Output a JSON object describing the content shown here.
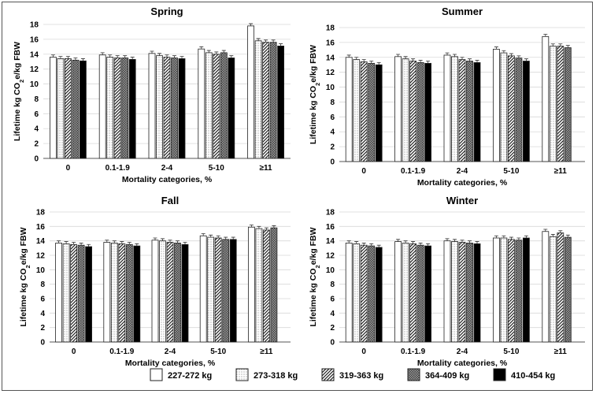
{
  "chart_data": [
    {
      "type": "bar",
      "title": "Spring",
      "xlabel": "Mortality categories, %",
      "ylabel": "Lifetime kg CO2e/kg FBW",
      "ylim": [
        0,
        18
      ],
      "yticks": [
        "0",
        "2",
        "4",
        "6",
        "8",
        "10",
        "12",
        "14",
        "16",
        "18"
      ],
      "categories": [
        "0",
        "0.1-1.9",
        "2-4",
        "5-10",
        "≥11"
      ],
      "series": [
        {
          "name": "227-272 kg",
          "values": [
            13.6,
            13.9,
            14.1,
            14.7,
            17.8
          ]
        },
        {
          "name": "273-318 kg",
          "values": [
            13.4,
            13.6,
            13.8,
            14.2,
            15.8
          ]
        },
        {
          "name": "319-363 kg",
          "values": [
            13.4,
            13.5,
            13.6,
            14.0,
            15.6
          ]
        },
        {
          "name": "364-409 kg",
          "values": [
            13.2,
            13.5,
            13.5,
            14.2,
            15.6
          ]
        },
        {
          "name": "410-454 kg",
          "values": [
            13.1,
            13.3,
            13.4,
            13.5,
            15.1
          ]
        }
      ]
    },
    {
      "type": "bar",
      "title": "Summer",
      "xlabel": "Mortality categories, %",
      "ylabel": "Lifetime kg CO2e/kg FBW",
      "ylim": [
        0,
        18
      ],
      "yticks": [
        "0",
        "2",
        "4",
        "6",
        "8",
        "10",
        "12",
        "14",
        "16",
        "18"
      ],
      "categories": [
        "0",
        "0.1-1.9",
        "2-4",
        "5-10",
        "≥11"
      ],
      "series": [
        {
          "name": "227-272 kg",
          "values": [
            14.0,
            14.1,
            14.3,
            15.1,
            16.8
          ]
        },
        {
          "name": "273-318 kg",
          "values": [
            13.7,
            13.8,
            14.1,
            14.6,
            15.5
          ]
        },
        {
          "name": "319-363 kg",
          "values": [
            13.4,
            13.5,
            13.7,
            14.2,
            15.5
          ]
        },
        {
          "name": "364-409 kg",
          "values": [
            13.2,
            13.3,
            13.5,
            13.9,
            15.3
          ]
        },
        {
          "name": "410-454 kg",
          "values": [
            13.0,
            13.2,
            13.3,
            13.5,
            null
          ]
        }
      ]
    },
    {
      "type": "bar",
      "title": "Fall",
      "xlabel": "Mortality categories, %",
      "ylabel": "Lifetime kg CO2e/kg FBW",
      "ylim": [
        0,
        18
      ],
      "yticks": [
        "0",
        "2",
        "4",
        "6",
        "8",
        "10",
        "12",
        "14",
        "16",
        "18"
      ],
      "categories": [
        "0",
        "0.1-1.9",
        "2-4",
        "5-10",
        "≥11"
      ],
      "series": [
        {
          "name": "227-272 kg",
          "values": [
            13.7,
            13.8,
            14.1,
            14.7,
            15.9
          ]
        },
        {
          "name": "273-318 kg",
          "values": [
            13.6,
            13.7,
            14.0,
            14.5,
            15.7
          ]
        },
        {
          "name": "319-363 kg",
          "values": [
            13.5,
            13.6,
            13.8,
            14.4,
            15.5
          ]
        },
        {
          "name": "364-409 kg",
          "values": [
            13.4,
            13.5,
            13.7,
            14.2,
            15.8
          ]
        },
        {
          "name": "410-454 kg",
          "values": [
            13.2,
            13.3,
            13.5,
            14.2,
            null
          ]
        }
      ]
    },
    {
      "type": "bar",
      "title": "Winter",
      "xlabel": "Mortality categories, %",
      "ylabel": "Lifetime kg CO2e/kg FBW",
      "ylim": [
        0,
        18
      ],
      "yticks": [
        "0",
        "2",
        "4",
        "6",
        "8",
        "10",
        "12",
        "14",
        "16",
        "18"
      ],
      "categories": [
        "0",
        "0.1-1.9",
        "2-4",
        "5-10",
        "≥11"
      ],
      "series": [
        {
          "name": "227-272 kg",
          "values": [
            13.7,
            13.9,
            14.0,
            14.4,
            15.3
          ]
        },
        {
          "name": "273-318 kg",
          "values": [
            13.6,
            13.7,
            13.9,
            14.4,
            14.6
          ]
        },
        {
          "name": "319-363 kg",
          "values": [
            13.4,
            13.6,
            13.8,
            14.2,
            15.1
          ]
        },
        {
          "name": "364-409 kg",
          "values": [
            13.3,
            13.4,
            13.7,
            14.1,
            14.5
          ]
        },
        {
          "name": "410-454 kg",
          "values": [
            13.1,
            13.3,
            13.6,
            14.4,
            null
          ]
        }
      ]
    }
  ],
  "legend": [
    {
      "label": "227-272 kg",
      "pattern": "white"
    },
    {
      "label": "273-318 kg",
      "pattern": "dots"
    },
    {
      "label": "319-363 kg",
      "pattern": "diagonal"
    },
    {
      "label": "364-409 kg",
      "pattern": "checker"
    },
    {
      "label": "410-454 kg",
      "pattern": "black"
    }
  ],
  "colors": {
    "axis": "#555555",
    "grid": "#d9d9d9",
    "bar_stroke": "#222222",
    "solid": "#000000"
  }
}
